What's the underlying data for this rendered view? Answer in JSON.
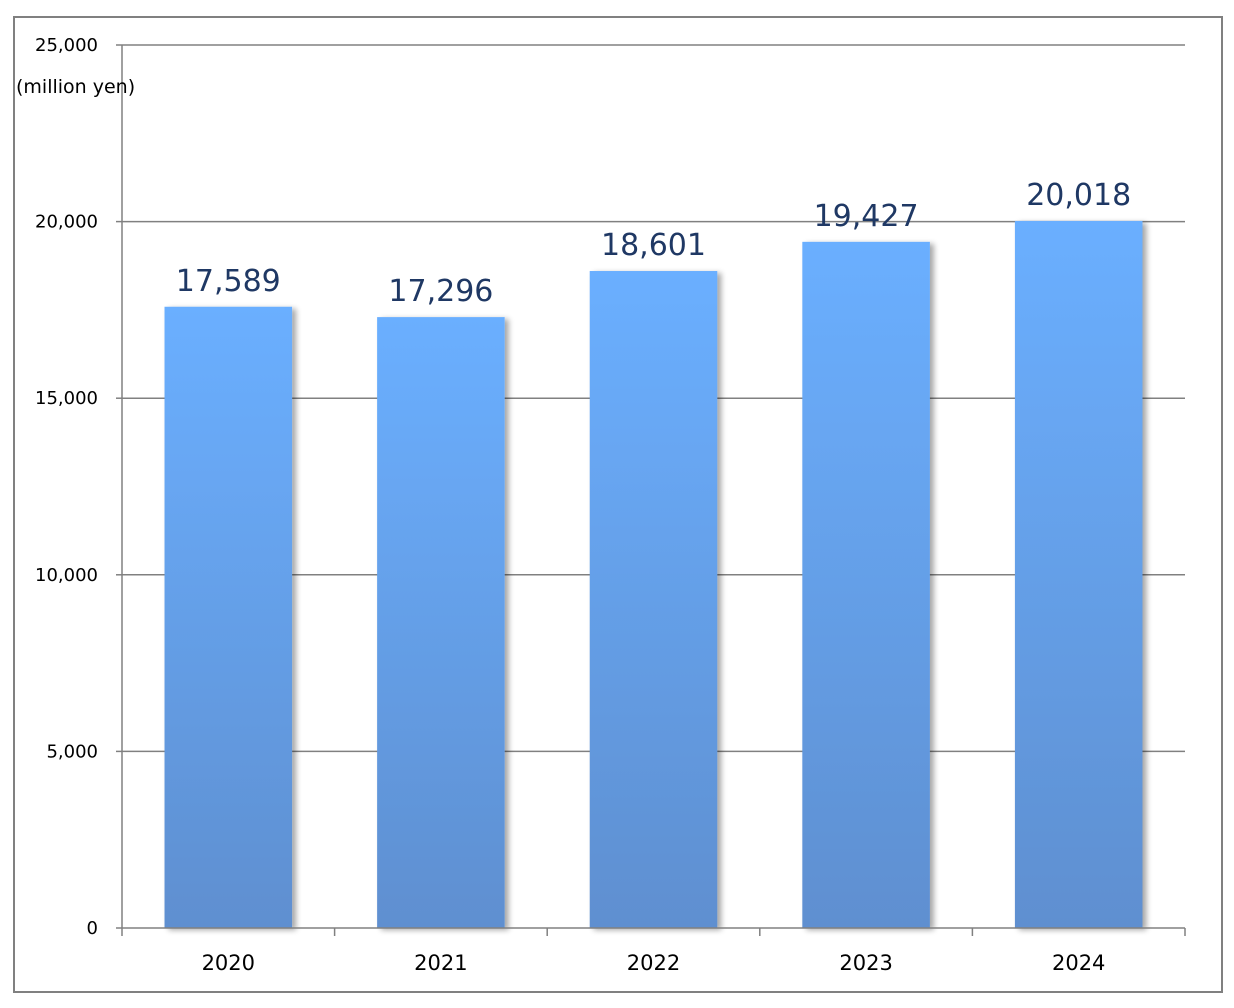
{
  "chart_data": {
    "type": "bar",
    "ylabel": "(million yen)",
    "categories": [
      "2020",
      "2021",
      "2022",
      "2023",
      "2024"
    ],
    "values": [
      17589,
      17296,
      18601,
      19427,
      20018
    ],
    "data_labels": [
      "17,589",
      "17,296",
      "18,601",
      "19,427",
      "20,018"
    ],
    "ylim": [
      0,
      25000
    ],
    "yticks": [
      0,
      5000,
      10000,
      15000,
      20000,
      25000
    ],
    "ytick_labels": [
      "0",
      "5,000",
      "10,000",
      "15,000",
      "20,000",
      "25,000"
    ],
    "grid": true,
    "legend": "none",
    "colors": {
      "bar_top": "#6AAFFF",
      "bar_bottom": "#5F8FD0",
      "data_label": "#1F3864",
      "grid": "#808080",
      "frame": "#808080"
    }
  }
}
